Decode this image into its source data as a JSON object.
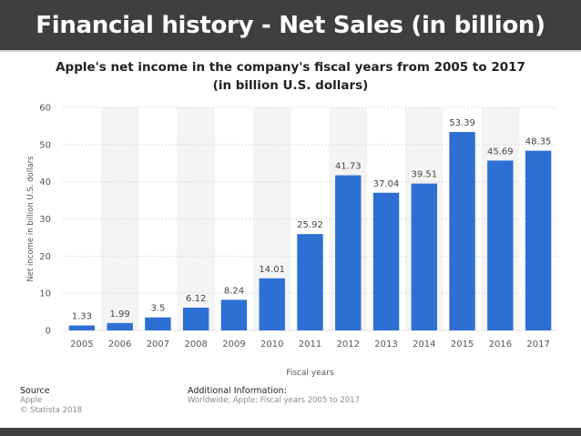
{
  "header": {
    "title": "Financial history - Net Sales (in billion)"
  },
  "chart_data": {
    "type": "bar",
    "title": "Apple's net income in the company's fiscal years from 2005 to 2017",
    "subtitle": "(in billion U.S. dollars)",
    "xlabel": "Fiscal years",
    "ylabel": "Net income in billion U.S. dollars",
    "categories": [
      "2005",
      "2006",
      "2007",
      "2008",
      "2009",
      "2010",
      "2011",
      "2012",
      "2013",
      "2014",
      "2015",
      "2016",
      "2017"
    ],
    "values": [
      1.33,
      1.99,
      3.5,
      6.12,
      8.24,
      14.01,
      25.92,
      41.73,
      37.04,
      39.51,
      53.39,
      45.69,
      48.35
    ],
    "value_labels": [
      "1.33",
      "1.99",
      "3.5",
      "6.12",
      "8.24",
      "14.01",
      "25.92",
      "41.73",
      "37.04",
      "39.51",
      "53.39",
      "45.69",
      "48.35"
    ],
    "ylim": [
      0,
      60
    ],
    "yticks": [
      0,
      10,
      20,
      30,
      40,
      50,
      60
    ],
    "grid": true,
    "bar_color": "#2e6fd4"
  },
  "footer": {
    "source_heading": "Source",
    "source_name": "Apple",
    "source_copyright": "© Statista 2018",
    "info_heading": "Additional Information:",
    "info_text": "Worldwide; Apple; Fiscal years 2005 to 2017"
  }
}
